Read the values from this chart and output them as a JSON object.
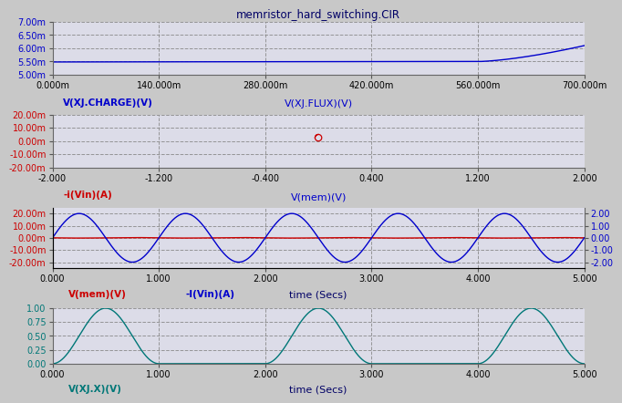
{
  "title": "memristor_hard_switching.CIR",
  "bg_color": "#c8c8c8",
  "plot_bg_color": "#dcdce8",
  "panel1": {
    "ylabel": "V(XJ.CHARGE)(V)",
    "color": "#0000cc",
    "xlim": [
      0.0,
      0.7
    ],
    "ylim": [
      0.005,
      0.007
    ],
    "ytick_vals": [
      0.005,
      0.0055,
      0.006,
      0.0065,
      0.007
    ],
    "ytick_labels": [
      "5.00m",
      "5.50m",
      "6.00m",
      "6.50m",
      "7.00m"
    ],
    "xtick_vals": [
      0.0,
      0.14,
      0.28,
      0.42,
      0.56,
      0.7
    ],
    "xtick_labels": [
      "0.000m",
      "140.000m",
      "280.000m",
      "420.000m",
      "560.000m",
      "700.000m"
    ]
  },
  "panel2": {
    "ylabel": "-i(Vin)(A)",
    "title": "V(XJ.FLUX)(V)",
    "color": "#cc0000",
    "title_color": "#0000cc",
    "xlim": [
      -2.0,
      2.0
    ],
    "ylim": [
      -0.02,
      0.02
    ],
    "ytick_vals": [
      -0.02,
      -0.01,
      0.0,
      0.01,
      0.02
    ],
    "ytick_labels": [
      "-20.00m",
      "-10.00m",
      "0.00m",
      "10.00m",
      "20.00m"
    ],
    "xtick_vals": [
      -2.0,
      -1.2,
      -0.4,
      0.4,
      1.2,
      2.0
    ],
    "xtick_labels": [
      "-2.000",
      "-1.200",
      "-0.400",
      "0.400",
      "1.200",
      "2.000"
    ]
  },
  "panel3": {
    "title": "V(mem)(V)",
    "title_color": "#0000cc",
    "color_left": "#cc0000",
    "color_right": "#0000cc",
    "xlim": [
      0.0,
      5.0
    ],
    "ylim_left": [
      -0.025,
      0.025
    ],
    "ylim_right": [
      -2.5,
      2.5
    ],
    "ytick_vals_left": [
      -0.02,
      -0.01,
      0.0,
      0.01,
      0.02
    ],
    "ytick_labels_left": [
      "-20.00m",
      "-10.00m",
      "0.00m",
      "10.00m",
      "20.00m"
    ],
    "ytick_vals_right": [
      -2.0,
      -1.0,
      0.0,
      1.0,
      2.0
    ],
    "ytick_labels_right": [
      "-2.00",
      "-1.00",
      "0.00",
      "1.00",
      "2.00"
    ],
    "xtick_vals": [
      0.0,
      1.0,
      2.0,
      3.0,
      4.0,
      5.0
    ],
    "xtick_labels": [
      "0.000",
      "1.000",
      "2.000",
      "3.000",
      "4.000",
      "5.000"
    ],
    "legend": [
      "V(mem)(V)",
      "-I(Vin)(A)"
    ],
    "xlabel": "time (Secs)"
  },
  "panel4": {
    "ylabel": "V(XJ.X)(V)",
    "color": "#007777",
    "xlim": [
      0.0,
      5.0
    ],
    "ylim": [
      0.0,
      1.0
    ],
    "ytick_vals": [
      0.0,
      0.25,
      0.5,
      0.75,
      1.0
    ],
    "ytick_labels": [
      "0.00",
      "0.25",
      "0.50",
      "0.75",
      "1.00"
    ],
    "xtick_vals": [
      0.0,
      1.0,
      2.0,
      3.0,
      4.0,
      5.0
    ],
    "xtick_labels": [
      "0.000",
      "1.000",
      "2.000",
      "3.000",
      "4.000",
      "5.000"
    ],
    "xlabel": "time (Secs)"
  }
}
